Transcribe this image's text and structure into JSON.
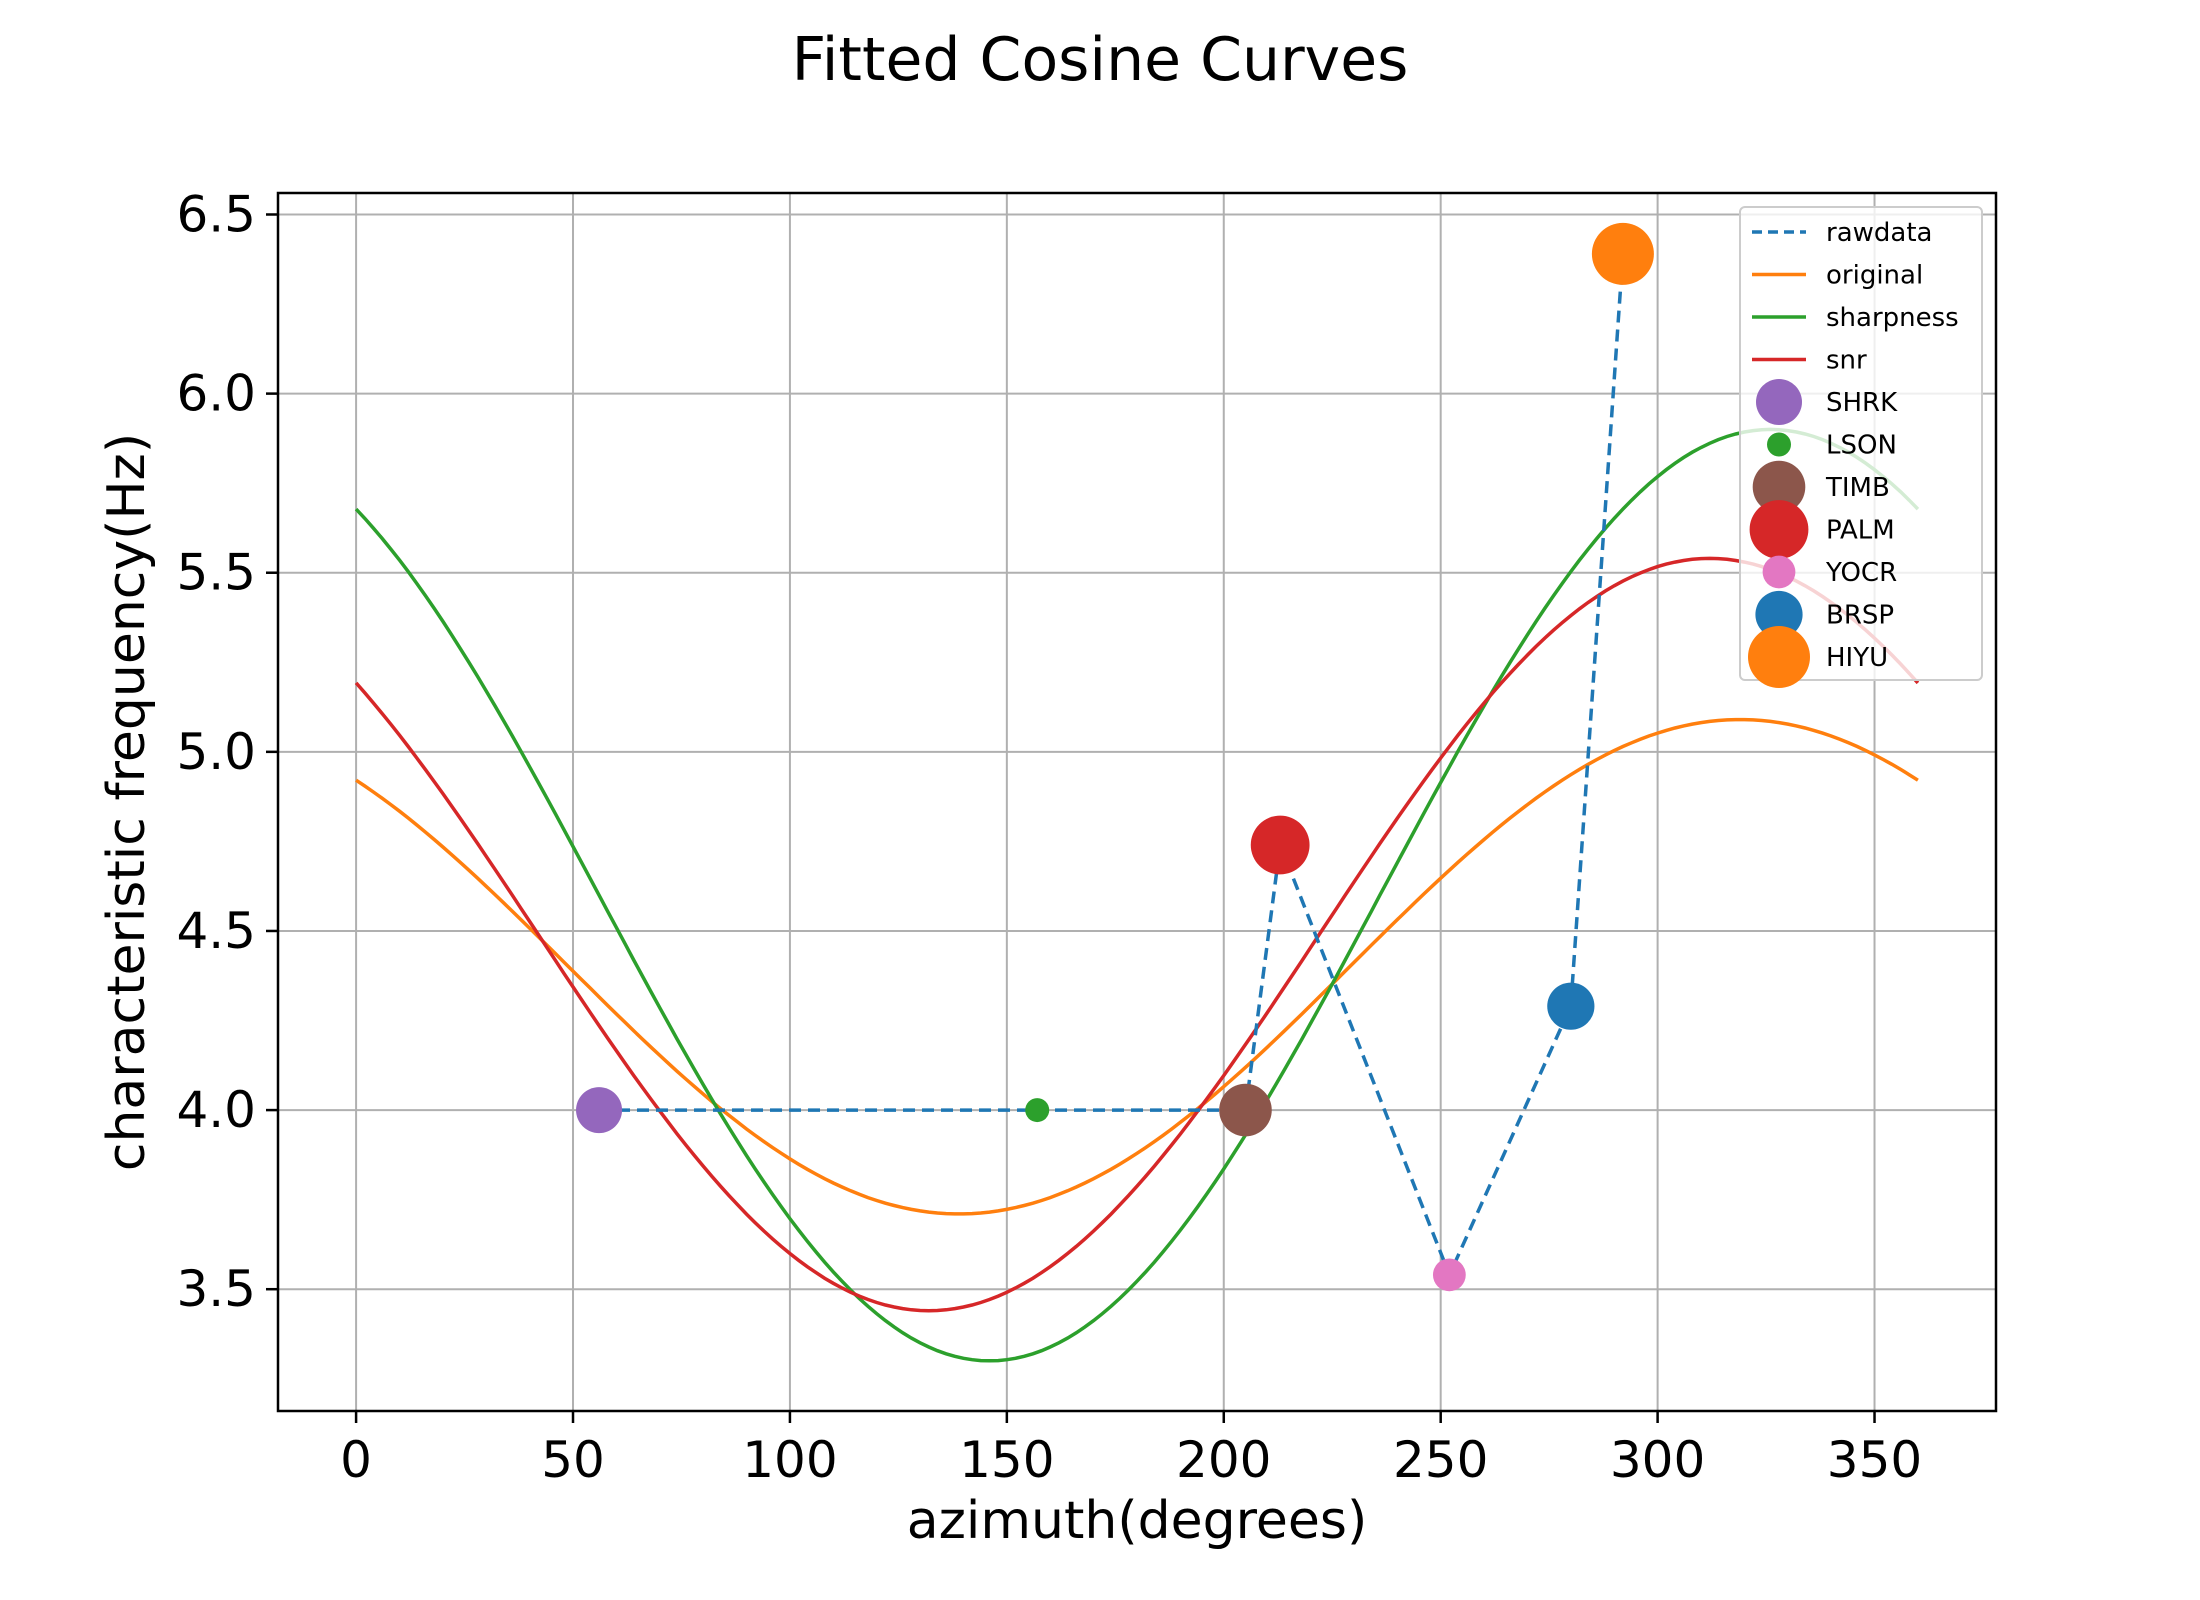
{
  "chart_data": {
    "type": "line",
    "title": "Fitted Cosine Curves",
    "xlabel": "azimuth(degrees)",
    "ylabel": "characteristic frequency(Hz)",
    "xlim": [
      -18,
      378
    ],
    "ylim": [
      3.16,
      6.56
    ],
    "xticks": [
      0,
      50,
      100,
      150,
      200,
      250,
      300,
      350
    ],
    "yticks": [
      3.5,
      4.0,
      4.5,
      5.0,
      5.5,
      6.0,
      6.5
    ],
    "xtick_labels": [
      "0",
      "50",
      "100",
      "150",
      "200",
      "250",
      "300",
      "350"
    ],
    "ytick_labels": [
      "3.5",
      "4.0",
      "4.5",
      "5.0",
      "5.5",
      "6.0",
      "6.5"
    ],
    "grid": true,
    "legend_position": "top-right",
    "rawdata": {
      "name": "rawdata",
      "color": "#1f77b4",
      "style": "dashed",
      "x": [
        56,
        157,
        205,
        213,
        252,
        280,
        292
      ],
      "y": [
        4.0,
        4.0,
        4.0,
        4.74,
        3.54,
        4.29,
        6.39
      ]
    },
    "curves": [
      {
        "name": "original",
        "color": "#ff7f0e",
        "mean": 4.4,
        "amplitude": 0.69,
        "phase_deg": 319
      },
      {
        "name": "sharpness",
        "color": "#2ca02c",
        "mean": 4.6,
        "amplitude": 1.3,
        "phase_deg": 326
      },
      {
        "name": "snr",
        "color": "#d62728",
        "mean": 4.49,
        "amplitude": 1.05,
        "phase_deg": 312
      }
    ],
    "stations": [
      {
        "name": "SHRK",
        "x": 56,
        "y": 4.0,
        "color": "#9467bd",
        "size": 0.55
      },
      {
        "name": "LSON",
        "x": 157,
        "y": 4.0,
        "color": "#2ca02c",
        "size": 0.15
      },
      {
        "name": "TIMB",
        "x": 205,
        "y": 4.0,
        "color": "#8c564b",
        "size": 0.72
      },
      {
        "name": "PALM",
        "x": 213,
        "y": 4.74,
        "color": "#d62728",
        "size": 0.9
      },
      {
        "name": "YOCR",
        "x": 252,
        "y": 3.54,
        "color": "#e377c2",
        "size": 0.28
      },
      {
        "name": "BRSP",
        "x": 280,
        "y": 4.29,
        "color": "#1f77b4",
        "size": 0.58
      },
      {
        "name": "HIYU",
        "x": 292,
        "y": 6.39,
        "color": "#ff7f0e",
        "size": 1.0
      }
    ]
  }
}
